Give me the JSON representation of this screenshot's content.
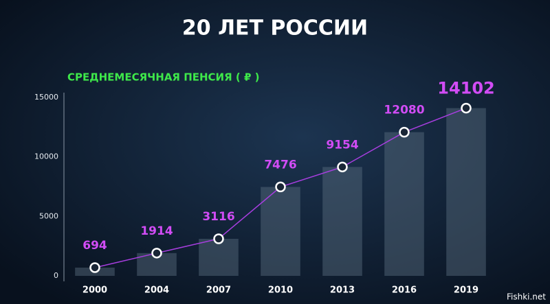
{
  "chart_data": {
    "type": "bar",
    "title": "20 ЛЕТ РОССИИ",
    "subtitle": "СРЕДНЕМЕСЯЧНАЯ ПЕНСИЯ ( ₽ )",
    "categories": [
      "2000",
      "2004",
      "2007",
      "2010",
      "2013",
      "2016",
      "2019"
    ],
    "values": [
      694,
      1914,
      3116,
      7476,
      9154,
      12080,
      14102
    ],
    "color": "#5b6e80",
    "line_color": "#a83ee0",
    "label_color": "#d14cf5",
    "subtitle_color": "#3ee84a",
    "ylim": [
      0,
      15000
    ],
    "yticks": [
      0,
      5000,
      10000,
      15000
    ],
    "grid": false,
    "watermark": "Fishki.net"
  }
}
